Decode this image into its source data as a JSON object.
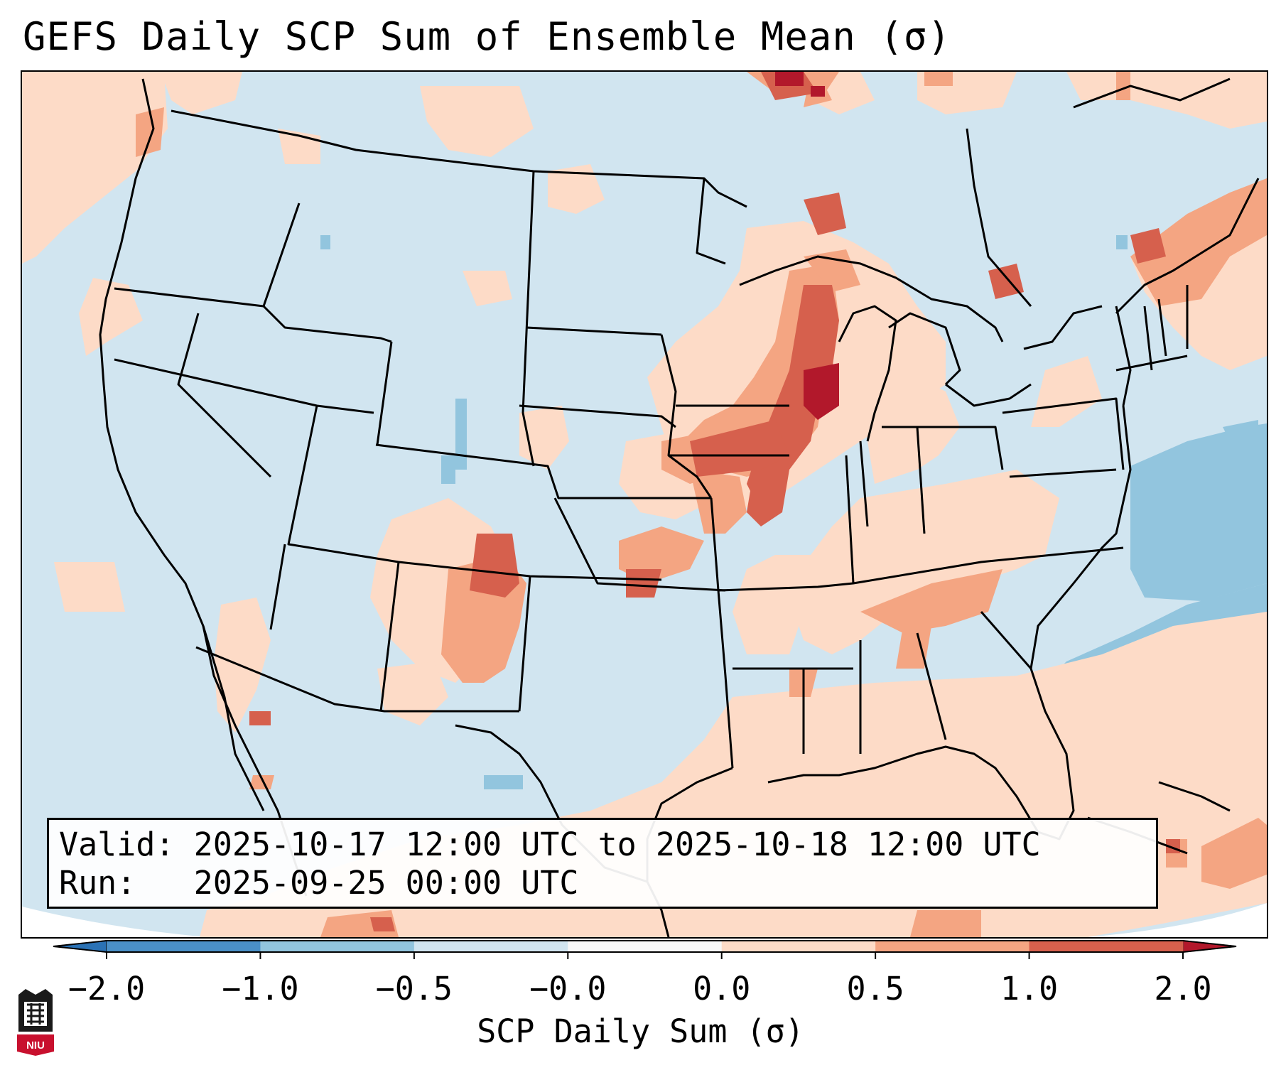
{
  "title": "GEFS Daily SCP Sum of Ensemble Mean (σ)",
  "info": {
    "valid_line": "Valid: 2025-10-17 12:00 UTC to 2025-10-18 12:00 UTC",
    "run_line": "Run:   2025-09-25 00:00 UTC"
  },
  "colorbar": {
    "label": "SCP Daily Sum (σ)",
    "ticks": [
      "−2.0",
      "−1.0",
      "−0.5",
      "−0.0",
      "0.0",
      "0.5",
      "1.0",
      "2.0"
    ],
    "colors": [
      "#4a8fc7",
      "#92c5de",
      "#d1e5f0",
      "#f7f7f7",
      "#fddbc7",
      "#f4a582",
      "#d6604d"
    ],
    "under_color": "#2b72b5",
    "over_color": "#b2182b"
  },
  "logo": {
    "text": "NIU"
  },
  "colors": {
    "background": "#d1e5f0",
    "pos_low": "#fddbc7",
    "pos_mid": "#f4a582",
    "pos_high": "#d6604d",
    "pos_max": "#b2182b",
    "neg_low": "#92c5de"
  }
}
